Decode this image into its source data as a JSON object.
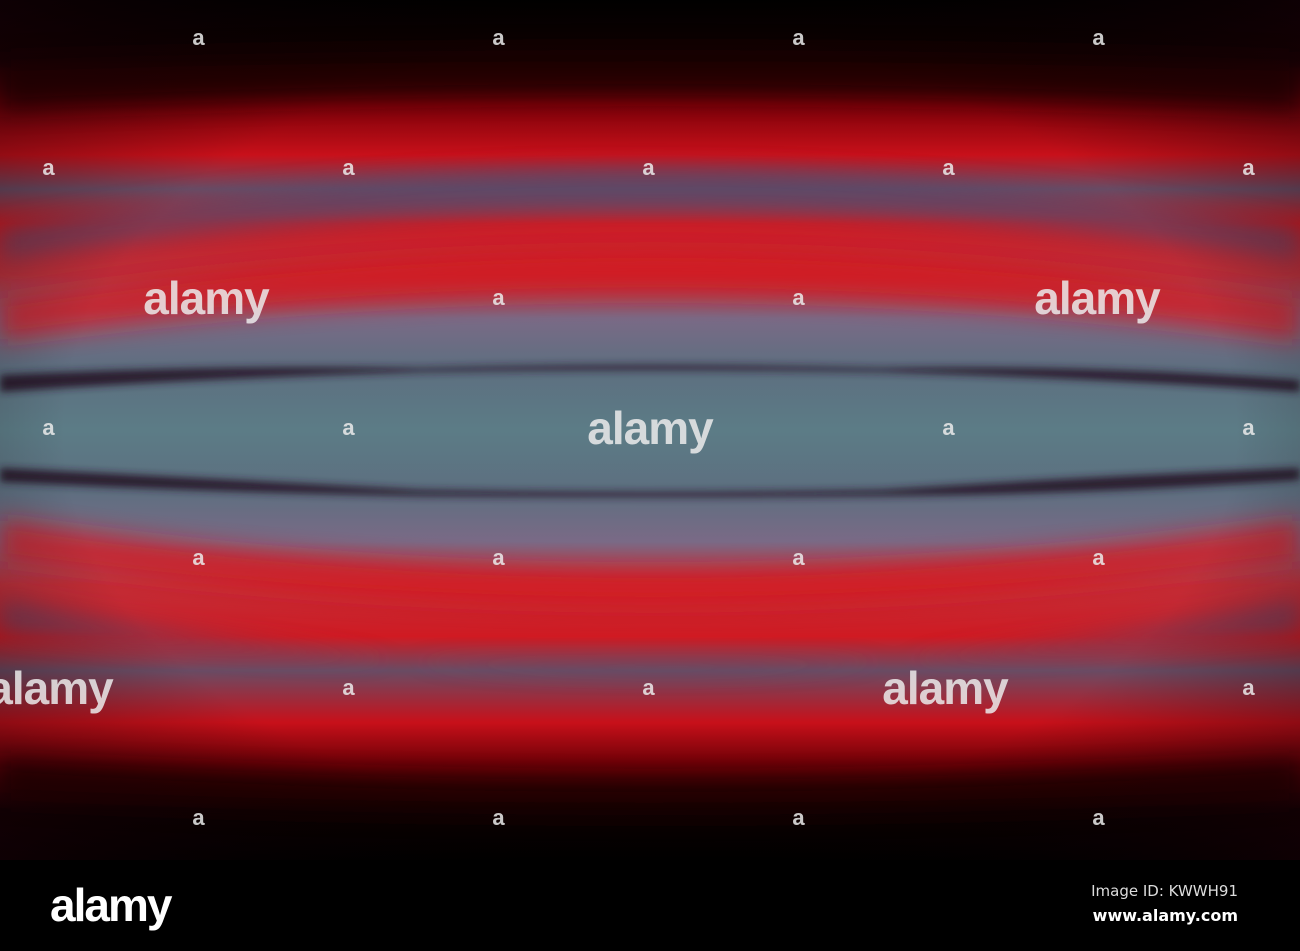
{
  "image": {
    "description_colors": {
      "sky_center": "#5d7a84",
      "red": "#d0121a",
      "dark": "#000000",
      "purple": "#5a4a66"
    },
    "watermark_small": "a",
    "watermark_large": "alamy"
  },
  "footer": {
    "logo": "alamy",
    "image_id": "Image ID: KWWH91",
    "url": "www.alamy.com"
  }
}
